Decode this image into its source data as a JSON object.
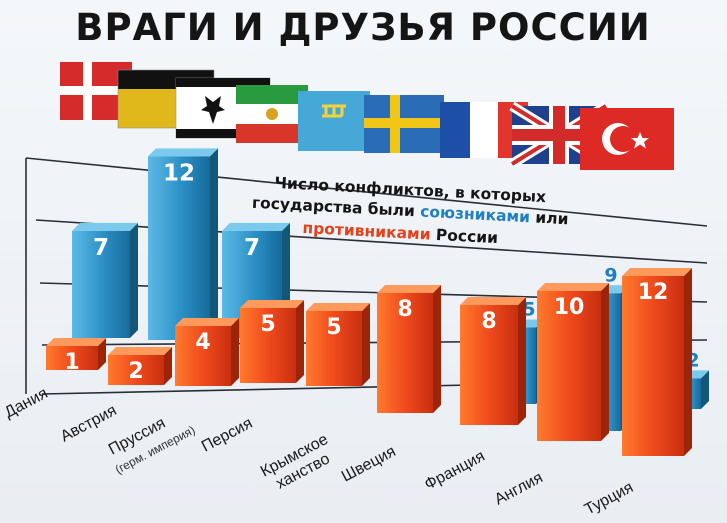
{
  "chart_data": {
    "type": "bar",
    "title": "ВРАГИ И ДРУЗЬЯ РОССИИ",
    "subtitle": {
      "line1": "Число конфликтов, в которых",
      "line2_a": "государства были ",
      "line2_b": "союзниками",
      "line2_c": " или",
      "line3_a": "противниками",
      "line3_b": " России"
    },
    "categories": [
      "Дания",
      "Австрия",
      "Пруссия",
      "Персия",
      "Крымское ханство",
      "Швеция",
      "Франция",
      "Англия",
      "Турция"
    ],
    "category_note": "(герм. империя)",
    "series": [
      {
        "name": "противниками",
        "values": [
          1,
          2,
          4,
          5,
          5,
          8,
          8,
          10,
          12
        ]
      },
      {
        "name": "союзниками",
        "values": [
          null,
          7,
          12,
          7,
          null,
          null,
          5,
          9,
          2
        ]
      }
    ],
    "colors": {
      "enemies": "#e8471b",
      "allies": "#2b8fc4",
      "title": "#151515",
      "grid": "#2a2f36"
    },
    "flags": [
      "denmark",
      "german-empire",
      "prussia",
      "persia",
      "crimean-khanate",
      "sweden",
      "france",
      "england",
      "turkey"
    ],
    "grid": true
  }
}
